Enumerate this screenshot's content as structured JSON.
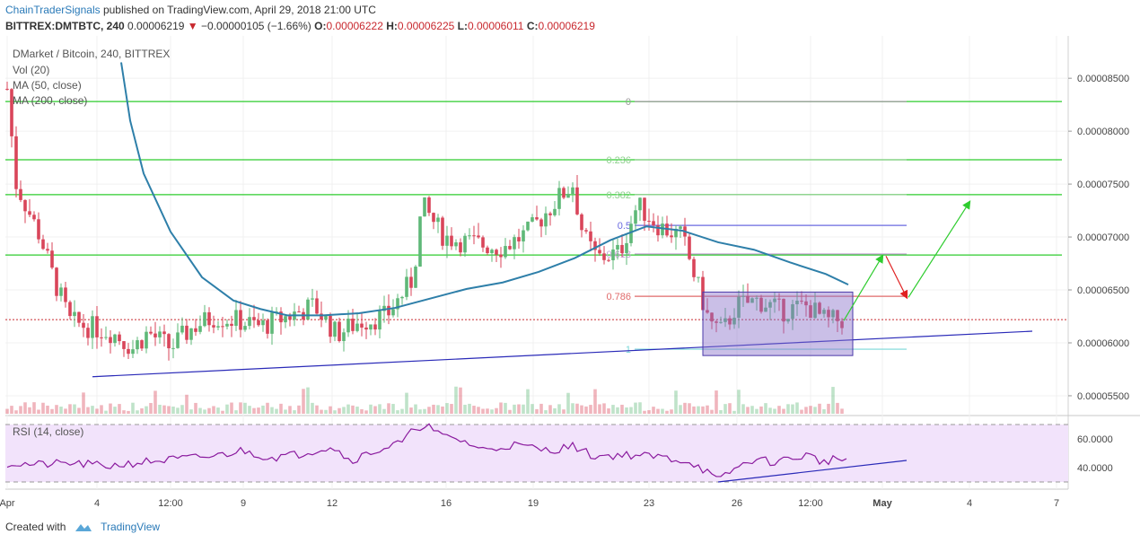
{
  "header": {
    "author": "ChainTraderSignals",
    "published": "published on TradingView.com, April 29, 2018 21:00 UTC",
    "symbol": "BITTREX:DMTBTC, 240",
    "last": "0.00006219",
    "change": "−0.00000105 (−1.66%)",
    "o_label": "O:",
    "o_value": "0.00006222",
    "h_label": "H:",
    "h_value": "0.00006225",
    "l_label": "L:",
    "l_value": "0.00006011",
    "c_label": "C:",
    "c_value": "0.00006219"
  },
  "legend": {
    "pair": "DMarket / Bitcoin, 240, BITTREX",
    "vol": "Vol (20)",
    "ma50": "MA (50, close)",
    "ma200": "MA (200, close)",
    "rsi": "RSI (14, close)"
  },
  "footer": {
    "created_with": "Created with",
    "brand": "TradingView"
  },
  "colors": {
    "up": "#5fb878",
    "down": "#d9455a",
    "ma50": "#2e7fa9",
    "support_line": "#2a2ab8",
    "horizontal_lines": "#2ecc2e",
    "zone_fill": "#8a70c9",
    "rsi_line": "#8a1a9e",
    "rsi_band": "#f2e3fb",
    "arrow_green": "#2ecc2e",
    "arrow_red": "#e02020",
    "last_price_line": "#c8282e"
  },
  "chart_data": {
    "type": "candlestick",
    "y_axis": {
      "range": [
        5.33e-05,
        8.9e-05
      ],
      "ticks": [
        "0.00005500",
        "0.00006000",
        "0.00006500",
        "0.00007000",
        "0.00007500",
        "0.00008000",
        "0.00008500"
      ],
      "tick_values": [
        5.5e-05,
        6e-05,
        6.5e-05,
        7e-05,
        7.5e-05,
        8e-05,
        8.5e-05
      ]
    },
    "x_axis": {
      "ticks": [
        "Apr",
        "4",
        "12:00",
        "9",
        "12",
        "16",
        "19",
        "23",
        "26",
        "12:00",
        "May",
        "4",
        "7"
      ]
    },
    "horizontal_levels": [
      8.28e-05,
      7.73e-05,
      7.4e-05,
      6.83e-05
    ],
    "fibonacci": {
      "levels": [
        {
          "label": "0",
          "value": 8.28e-05
        },
        {
          "label": "0.236",
          "value": 7.73e-05
        },
        {
          "label": "0.382",
          "value": 7.4e-05
        },
        {
          "label": "0.5",
          "value": 7.11e-05
        },
        {
          "label": "0.618",
          "value": 6.84e-05
        },
        {
          "label": "0.786",
          "value": 6.44e-05
        },
        {
          "label": "1",
          "value": 5.94e-05
        }
      ]
    },
    "last_price": 6.219e-05,
    "rsi": {
      "y_ticks": [
        "40.0000",
        "60.0000"
      ],
      "tick_values": [
        40,
        60
      ],
      "range": [
        25,
        75
      ],
      "band": [
        30,
        70
      ]
    }
  }
}
